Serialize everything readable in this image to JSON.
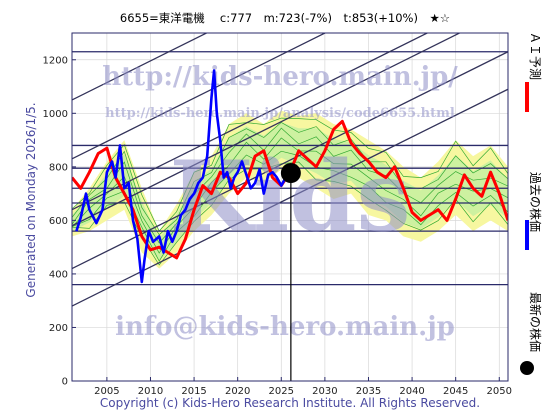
{
  "chart_data": {
    "type": "line",
    "title": "6655=東洋電機　 c:777　m:723(-7%)　t:853(+10%)　★☆",
    "x_ticks": [
      2005,
      2010,
      2015,
      2020,
      2025,
      2030,
      2035,
      2040,
      2045,
      2050
    ],
    "y_ticks": [
      0,
      200,
      400,
      600,
      800,
      1000,
      1200
    ],
    "xlim": [
      2001,
      2051
    ],
    "ylim": [
      0,
      1300
    ],
    "grid": true,
    "current_year": 2026.1,
    "current_price": 777,
    "h_levels": [
      1230,
      880,
      795,
      720,
      665,
      560,
      360
    ],
    "channel_lines": [
      {
        "x": [
          2001,
          2051
        ],
        "y": [
          1050,
          1860
        ]
      },
      {
        "x": [
          2001,
          2051
        ],
        "y": [
          830,
          1640
        ]
      },
      {
        "x": [
          2001,
          2051
        ],
        "y": [
          640,
          1450
        ]
      },
      {
        "x": [
          2001,
          2051
        ],
        "y": [
          580,
          1390
        ]
      },
      {
        "x": [
          2001,
          2051
        ],
        "y": [
          420,
          1230
        ]
      },
      {
        "x": [
          2001,
          2051
        ],
        "y": [
          280,
          1090
        ]
      }
    ],
    "band_upper": {
      "x": [
        2001,
        2003,
        2005,
        2007,
        2009,
        2011,
        2013,
        2015,
        2017,
        2019,
        2021,
        2023,
        2025,
        2027,
        2029,
        2031,
        2033,
        2035,
        2037,
        2039,
        2041,
        2043,
        2045,
        2047,
        2049,
        2051
      ],
      "y": [
        640,
        720,
        820,
        900,
        720,
        560,
        660,
        780,
        840,
        960,
        1000,
        960,
        1010,
        990,
        1000,
        960,
        940,
        900,
        860,
        800,
        760,
        820,
        900,
        840,
        880,
        800
      ]
    },
    "band_lower": {
      "x": [
        2001,
        2003,
        2005,
        2007,
        2009,
        2011,
        2013,
        2015,
        2017,
        2019,
        2021,
        2023,
        2025,
        2027,
        2029,
        2031,
        2033,
        2035,
        2037,
        2039,
        2041,
        2043,
        2045,
        2047,
        2049,
        2051
      ],
      "y": [
        540,
        560,
        600,
        640,
        480,
        420,
        480,
        560,
        620,
        700,
        760,
        740,
        790,
        760,
        720,
        680,
        700,
        620,
        600,
        540,
        520,
        560,
        620,
        560,
        600,
        560
      ]
    },
    "series": [
      {
        "name": "ＡＩ予測",
        "color": "#ff0000",
        "x": [
          2001,
          2002,
          2003,
          2004,
          2005,
          2006,
          2007,
          2008,
          2009,
          2010,
          2011,
          2012,
          2013,
          2014,
          2015,
          2016,
          2017,
          2018,
          2019,
          2020,
          2021,
          2022,
          2023,
          2024,
          2025,
          2026,
          2027,
          2028,
          2029,
          2030,
          2031,
          2032,
          2033,
          2034,
          2035,
          2036,
          2037,
          2038,
          2039,
          2040,
          2041,
          2042,
          2043,
          2044,
          2045,
          2046,
          2047,
          2048,
          2049,
          2050,
          2051
        ],
        "y": [
          760,
          720,
          780,
          850,
          870,
          760,
          700,
          640,
          540,
          490,
          500,
          480,
          460,
          530,
          640,
          730,
          700,
          780,
          760,
          700,
          740,
          840,
          860,
          760,
          730,
          780,
          860,
          830,
          800,
          860,
          940,
          970,
          890,
          850,
          820,
          780,
          760,
          800,
          720,
          630,
          600,
          620,
          640,
          600,
          680,
          770,
          720,
          690,
          780,
          700,
          600
        ]
      },
      {
        "name": "過去の株価",
        "color": "#0000ff",
        "x": [
          2001.5,
          2002,
          2002.6,
          2003,
          2003.8,
          2004.5,
          2005,
          2005.6,
          2006,
          2006.5,
          2007,
          2007.5,
          2008,
          2008.5,
          2009,
          2009.3,
          2009.8,
          2010.3,
          2011,
          2011.5,
          2012,
          2012.5,
          2013,
          2013.5,
          2014,
          2014.5,
          2015,
          2015.5,
          2016,
          2016.5,
          2017,
          2017.3,
          2017.6,
          2018,
          2018.4,
          2018.8,
          2019.2,
          2019.6,
          2020,
          2020.5,
          2021,
          2021.5,
          2022,
          2022.5,
          2023,
          2023.5,
          2024,
          2024.5,
          2025,
          2025.5,
          2026
        ],
        "y": [
          560,
          610,
          700,
          640,
          590,
          640,
          780,
          820,
          760,
          880,
          720,
          740,
          600,
          530,
          370,
          450,
          560,
          520,
          540,
          480,
          560,
          520,
          560,
          620,
          640,
          680,
          700,
          740,
          760,
          840,
          1060,
          1160,
          1000,
          900,
          760,
          780,
          720,
          760,
          780,
          820,
          770,
          720,
          740,
          790,
          700,
          770,
          780,
          760,
          730,
          760,
          777
        ]
      }
    ],
    "legend": [
      {
        "label": "ＡＩ予測",
        "color": "#ff0000"
      },
      {
        "label": "過去の株価",
        "color": "#0000ff"
      },
      {
        "label": "最新の株価",
        "color": "#000000"
      }
    ]
  },
  "texts": {
    "generated": "Generated on Monday 2026/1/5.",
    "copyright": "Copyright (c) Kids-Hero Research Institute. All Rights Reserved.",
    "watermark_url": "http://kids-hero.main.jp/",
    "watermark_analysis": "http://kids-hero.main.jp/analysis/code6655.html",
    "watermark_email": "info@kids-hero.main.jp",
    "watermark_big": "Kids"
  },
  "colors": {
    "frame": "#2a2a6a",
    "band_outer": "#f7f7a0",
    "band_inner": "#c8f0a0",
    "band_lines": "#33aa33",
    "channel": "#33335a"
  }
}
